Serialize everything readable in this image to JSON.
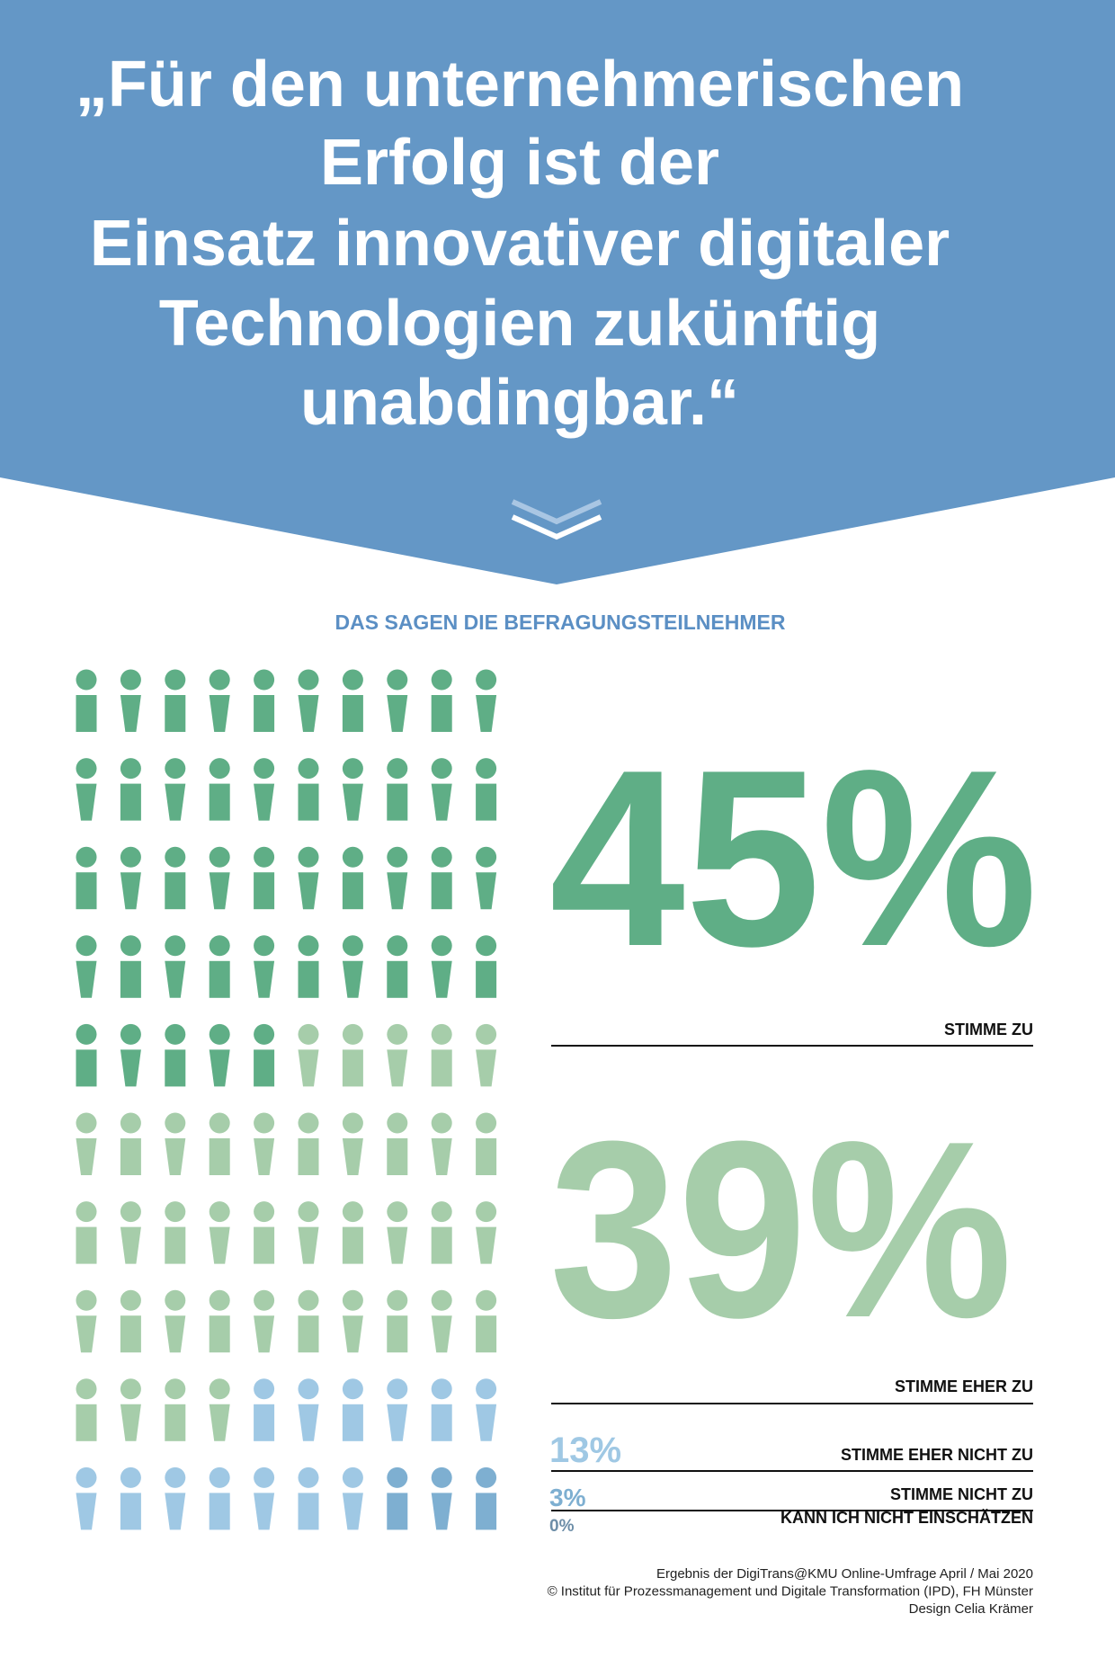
{
  "chart_data": {
    "type": "pictogram",
    "title": [
      "„Für den unternehmerischen",
      "Erfolg ist der",
      "Einsatz innovativer digitaler",
      "Technologien zukünftig",
      "unabdingbar.“"
    ],
    "subtitle": "DAS SAGEN DIE BEFRAGUNGSTEILNEHMER",
    "categories": [
      "STIMME ZU",
      "STIMME EHER ZU",
      "STIMME EHER NICHT ZU",
      "STIMME NICHT ZU",
      "KANN ICH NICHT EINSCHÄTZEN"
    ],
    "values": [
      45,
      39,
      13,
      3,
      0
    ],
    "value_labels": [
      "45%",
      "39%",
      "13%",
      "3%",
      "0%"
    ],
    "colors": [
      "#5fae86",
      "#a6cdaa",
      "#9fc8e4",
      "#7eafd1",
      "#6d8ea8"
    ],
    "source": [
      "Ergebnis der DigiTrans@KMU Online-Umfrage April / Mai 2020",
      "© Institut für Prozessmanagement und Digitale Transformation (IPD), FH Münster",
      "Design Celia Krämer"
    ]
  }
}
